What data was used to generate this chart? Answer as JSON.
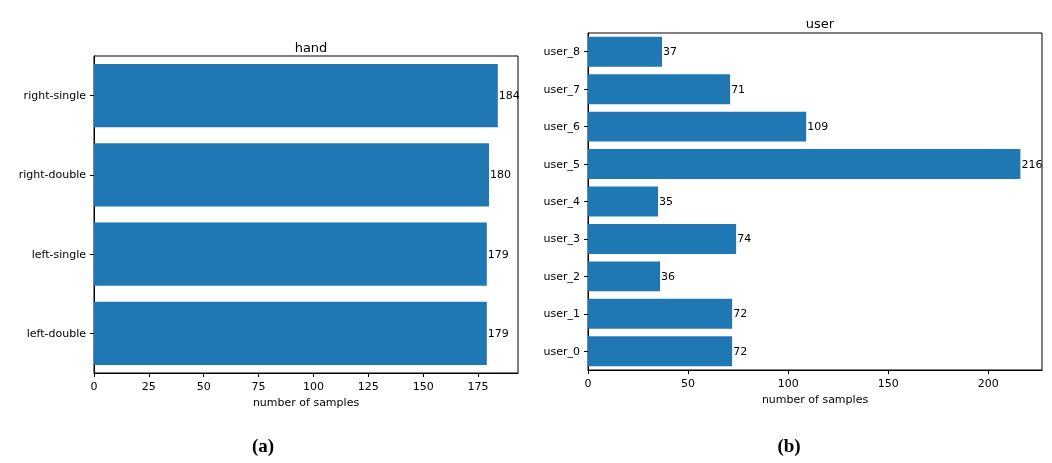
{
  "chart_data": [
    {
      "type": "bar",
      "orientation": "horizontal",
      "title": "hand",
      "xlabel": "number of samples",
      "categories": [
        "right-single",
        "right-double",
        "left-single",
        "left-double"
      ],
      "values": [
        184,
        180,
        179,
        179
      ],
      "color": "#1f77b4",
      "xlim": [
        0,
        193.2
      ],
      "xticks": [
        0,
        25,
        50,
        75,
        100,
        125,
        150,
        175
      ],
      "data_labels": true,
      "grid": false,
      "annotations": [
        "(a)"
      ]
    },
    {
      "type": "bar",
      "orientation": "horizontal",
      "title": "user",
      "xlabel": "number of samples",
      "categories": [
        "user_8",
        "user_7",
        "user_6",
        "user_5",
        "user_4",
        "user_3",
        "user_2",
        "user_1",
        "user_0"
      ],
      "values": [
        37,
        71,
        109,
        216,
        35,
        74,
        36,
        72,
        72
      ],
      "color": "#1f77b4",
      "xlim": [
        0,
        226.8
      ],
      "xticks": [
        0,
        50,
        100,
        150,
        200
      ],
      "data_labels": true,
      "grid": false,
      "annotations": [
        "(b)"
      ]
    }
  ]
}
